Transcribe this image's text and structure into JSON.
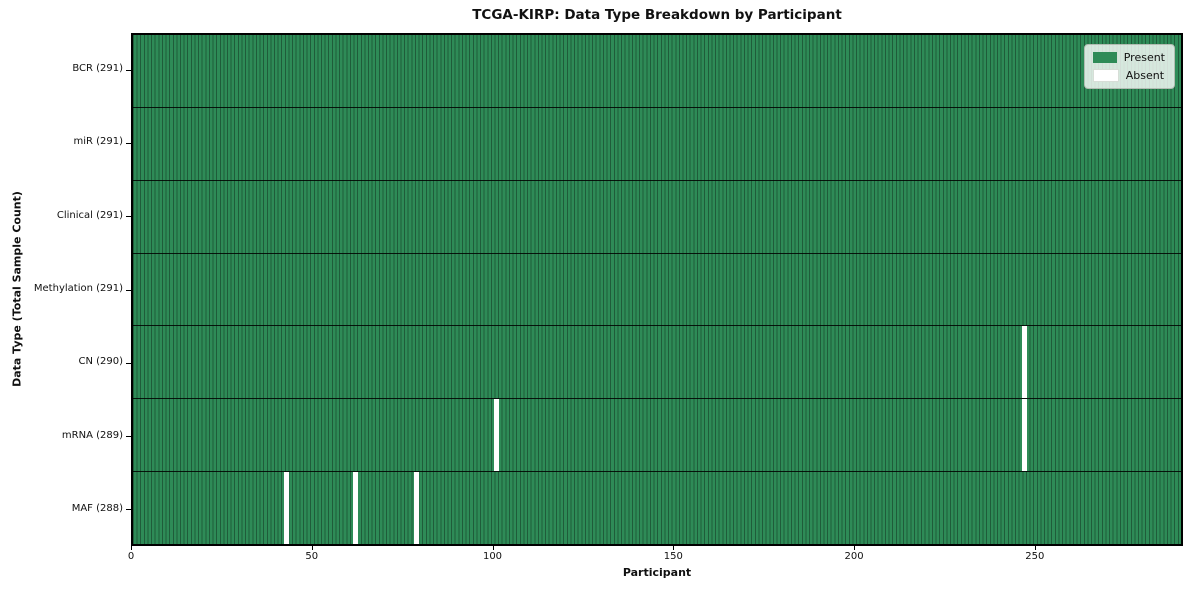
{
  "chart_data": {
    "type": "heatmap",
    "title": "TCGA-KIRP: Data Type Breakdown by Participant",
    "xlabel": "Participant",
    "ylabel": "Data Type (Total Sample Count)",
    "xlim": [
      0,
      291
    ],
    "x_ticks": [
      0,
      50,
      100,
      150,
      200,
      250
    ],
    "n_participants": 291,
    "grid": "per-cell vertical edges, horizontal row separators",
    "legend_position": "upper right",
    "legend": [
      {
        "label": "Present",
        "color": "#2e8b57"
      },
      {
        "label": "Absent",
        "color": "#ffffff"
      }
    ],
    "colors": {
      "present": "#2e8b57",
      "absent": "#ffffff",
      "cell_edge": "#1f5c3a",
      "row_separator": "#000000",
      "spine": "#000000"
    },
    "rows": [
      {
        "label": "BCR (291)",
        "data_type": "BCR",
        "total_samples": 291,
        "absent_participants": []
      },
      {
        "label": "miR (291)",
        "data_type": "miR",
        "total_samples": 291,
        "absent_participants": []
      },
      {
        "label": "Clinical (291)",
        "data_type": "Clinical",
        "total_samples": 291,
        "absent_participants": []
      },
      {
        "label": "Methylation (291)",
        "data_type": "Methylation",
        "total_samples": 291,
        "absent_participants": []
      },
      {
        "label": "CN (290)",
        "data_type": "CN",
        "total_samples": 290,
        "absent_participants": [
          246
        ]
      },
      {
        "label": "mRNA (289)",
        "data_type": "mRNA",
        "total_samples": 289,
        "absent_participants": [
          100,
          246
        ]
      },
      {
        "label": "MAF (288)",
        "data_type": "MAF",
        "total_samples": 288,
        "absent_participants": [
          42,
          61,
          78
        ]
      }
    ]
  }
}
